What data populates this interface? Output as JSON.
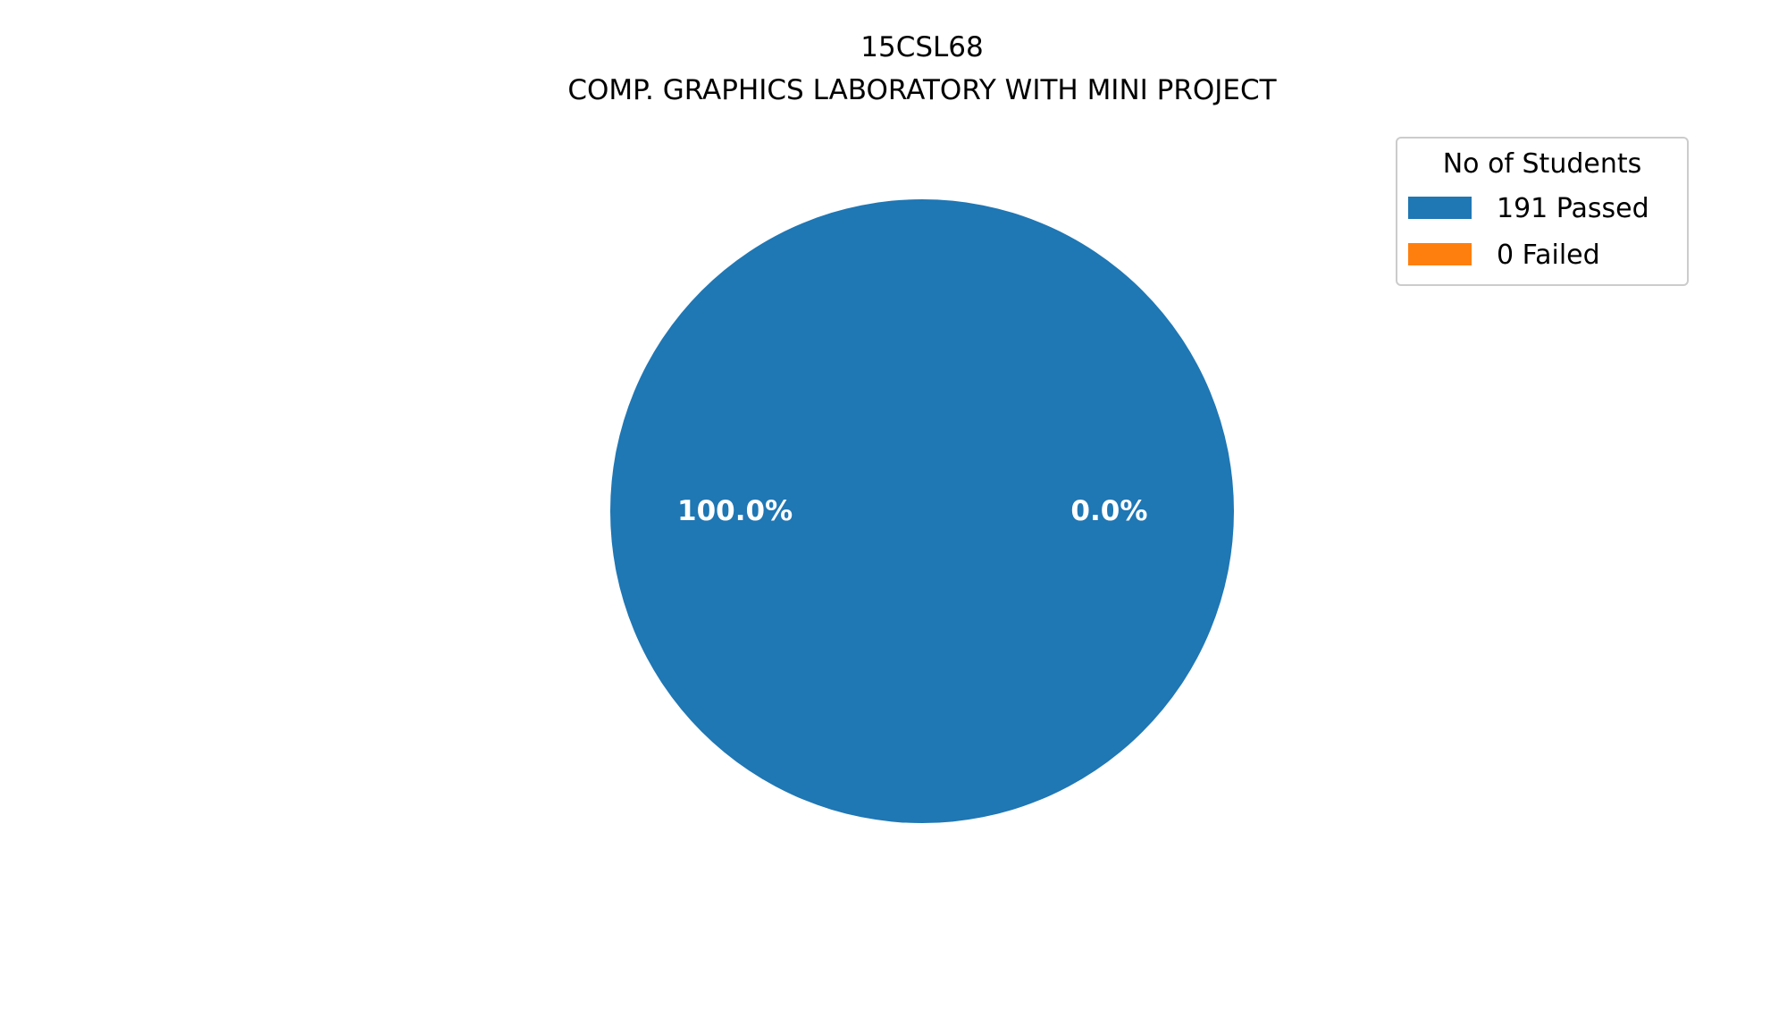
{
  "chart_data": {
    "type": "pie",
    "title": "15CSL68",
    "subtitle": "COMP. GRAPHICS LABORATORY WITH MINI PROJECT",
    "slices": [
      {
        "label": "191 Passed",
        "value": 191,
        "pct_label": "100.0%",
        "color": "#1f77b4"
      },
      {
        "label": "0 Failed",
        "value": 0,
        "pct_label": "0.0%",
        "color": "#ff7f0e"
      }
    ],
    "legend": {
      "title": "No of Students",
      "placement": "top-right"
    }
  }
}
